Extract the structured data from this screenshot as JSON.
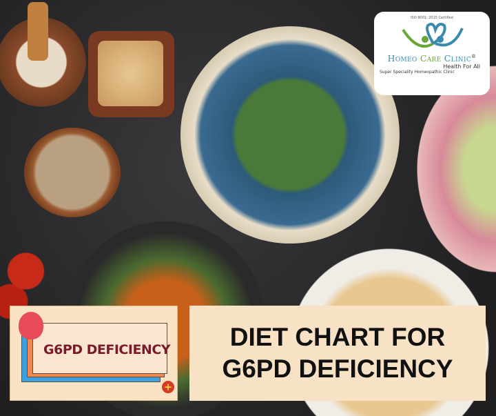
{
  "logo": {
    "iso_text": "ISO 9001: 2015 Certified",
    "name_part1": "Homeo",
    "name_part2": "Care",
    "name_part3": "Clinic",
    "registered": "®",
    "tagline": "Health For All",
    "subtitle": "Super Speciality Homeopathic Clinic",
    "colors": {
      "blue": "#3a8ab0",
      "green": "#6aa63a"
    }
  },
  "badge": {
    "text": "G6PD DEFICIENCY",
    "mascot_icon": "red-blood-cell-mascot",
    "plus_icon": "plus-icon"
  },
  "headline": {
    "line1": "DIET CHART FOR",
    "line2": "G6PD DEFICIENCY"
  },
  "colors": {
    "panel": "#f8e2c5",
    "background": "#2a2a2c"
  }
}
